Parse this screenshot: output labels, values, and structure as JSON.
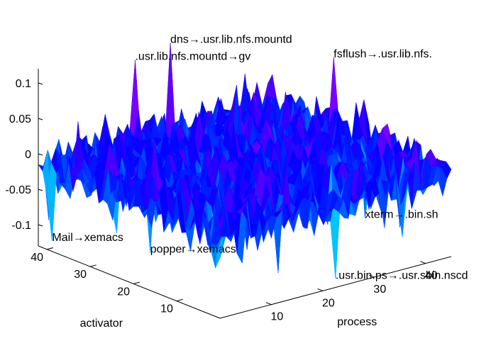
{
  "chart_data": {
    "type": "surface",
    "xlabel": "process",
    "ylabel": "activator",
    "zlabel": "",
    "xlim": [
      0,
      45
    ],
    "ylim": [
      0,
      42
    ],
    "zlim": [
      -0.13,
      0.12
    ],
    "x_ticks": [
      "10",
      "20",
      "30",
      "40"
    ],
    "y_ticks": [
      "10",
      "20",
      "30",
      "40"
    ],
    "z_ticks": [
      "0.1",
      "0.05",
      "0",
      "-0.05",
      "-0.1"
    ],
    "colormap": [
      "#ff0000",
      "#ff00ff",
      "#0000ff",
      "#00ffff",
      "#00ff00"
    ],
    "grid_size": [
      45,
      42
    ],
    "annotations": [
      {
        "text": "dns→.usr.lib.nfs.mountd",
        "x": 24,
        "y": 40,
        "z": 0.115
      },
      {
        "text": ".usr.lib.nfs.mountd→gv",
        "x": 18,
        "y": 41,
        "z": 0.1
      },
      {
        "text": "fsflush→.usr.lib.nfs.",
        "x": 44,
        "y": 26,
        "z": 0.09
      },
      {
        "text": "Mail→xemacs",
        "x": 1,
        "y": 40,
        "z": -0.12
      },
      {
        "text": "popper→xemacs",
        "x": 10,
        "y": 28,
        "z": -0.125
      },
      {
        "text": "xterm→.bin.sh",
        "x": 40,
        "y": 14,
        "z": -0.1
      },
      {
        "text": ".usr.bin.ps→.usr.sbin.nscd",
        "x": 25,
        "y": 3,
        "z": -0.13
      }
    ]
  }
}
